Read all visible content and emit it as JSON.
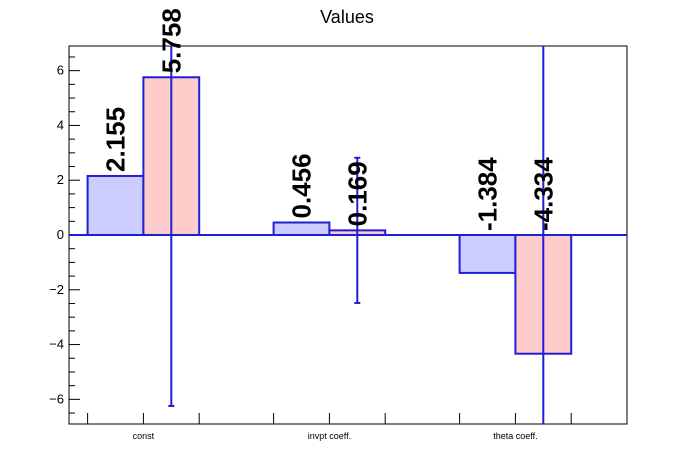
{
  "chart_data": {
    "type": "bar",
    "title": "Values",
    "xlabel": "",
    "ylabel": "",
    "categories": [
      "const",
      "invpt coeff.",
      "theta coeff."
    ],
    "ylim": [
      -6.9,
      6.9
    ],
    "yticks": [
      -6,
      -4,
      -2,
      0,
      2,
      4,
      6
    ],
    "grid": false,
    "legend": "none",
    "series": [
      {
        "values": [
          2.155,
          0.456,
          -1.384
        ],
        "labels": [
          "2.155",
          "0.456",
          "-1.384"
        ],
        "errors": [
          null,
          null,
          null
        ],
        "fill": "#ccccff",
        "stroke": "#1f1fd6"
      },
      {
        "values": [
          5.758,
          0.169,
          -4.334
        ],
        "labels": [
          "5.758",
          "0.169",
          "-4.334"
        ],
        "errors": [
          12.0,
          2.65,
          12.0
        ],
        "fill": "#ffcccc",
        "stroke": "#1f1fd6"
      }
    ],
    "colors": {
      "axis": "#000000",
      "error_bar": "#1f1fd6",
      "zero_line": "#1f1fd6"
    }
  }
}
